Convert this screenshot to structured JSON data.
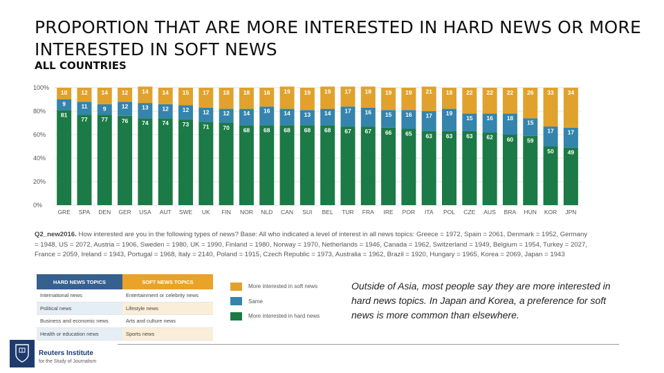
{
  "title": "PROPORTION THAT ARE MORE INTERESTED IN HARD NEWS OR MORE INTERESTED IN SOFT NEWS",
  "subtitle": "ALL COUNTRIES",
  "footnote": {
    "label": "Q2_new2016.",
    "text": " How interested are you in the following types of news? Base: All who indicated a level of interest in all news topics: Greece = 1972, Spain = 2061, Denmark = 1952, Germany = 1948, US = 2072, Austria = 1906, Sweden = 1980, UK = 1990, Finland = 1980, Norway = 1970, Netherlands = 1946, Canada = 1962, Switzerland = 1949, Belgium = 1954, Turkey = 2027, France = 2059, Ireland = 1943, Portugal = 1968, Italy = 2140, Poland = 1915, Czech Republic = 1973, Australia = 1962, Brazil = 1920, Hungary = 1965, Korea = 2069, Japan = 1943"
  },
  "chart_data": {
    "type": "bar",
    "stacked": true,
    "categories": [
      "GRE",
      "SPA",
      "DEN",
      "GER",
      "USA",
      "AUT",
      "SWE",
      "UK",
      "FIN",
      "NOR",
      "NLD",
      "CAN",
      "SUI",
      "BEL",
      "TUR",
      "FRA",
      "IRE",
      "POR",
      "ITA",
      "POL",
      "CZE",
      "AUS",
      "BRA",
      "HUN",
      "KOR",
      "JPN"
    ],
    "series": [
      {
        "name": "More interested in hard news",
        "color": "#1b7a45",
        "values": [
          81,
          77,
          77,
          76,
          74,
          74,
          73,
          71,
          70,
          68,
          68,
          68,
          68,
          68,
          67,
          67,
          66,
          65,
          63,
          63,
          63,
          62,
          60,
          59,
          50,
          49
        ]
      },
      {
        "name": "Same",
        "color": "#3484ad",
        "values": [
          9,
          11,
          9,
          12,
          13,
          12,
          12,
          12,
          12,
          14,
          16,
          14,
          13,
          14,
          17,
          16,
          15,
          16,
          17,
          19,
          15,
          16,
          18,
          15,
          17,
          17
        ]
      },
      {
        "name": "More interested in soft news",
        "color": "#e0a22d",
        "values": [
          10,
          12,
          14,
          12,
          14,
          14,
          15,
          17,
          18,
          18,
          16,
          19,
          19,
          19,
          17,
          18,
          19,
          19,
          21,
          18,
          22,
          22,
          22,
          26,
          33,
          34
        ]
      }
    ],
    "yticks": [
      "100%",
      "80%",
      "60%",
      "40%",
      "20%",
      "0%"
    ],
    "ylim": [
      0,
      100
    ],
    "grid": true
  },
  "topics": {
    "headers": [
      "HARD NEWS TOPICS",
      "SOFT NEWS TOPICS"
    ],
    "rows": [
      [
        "International news",
        "Entertainment or celebrity news"
      ],
      [
        "Political news",
        "Lifestyle news"
      ],
      [
        "Business and economic news",
        "Arts and culture news"
      ],
      [
        "Health or education news",
        "Sports news"
      ]
    ]
  },
  "legend": [
    {
      "label": "More interested in soft news",
      "color": "#e0a22d"
    },
    {
      "label": "Same",
      "color": "#3484ad"
    },
    {
      "label": "More interested in hard news",
      "color": "#1b7a45"
    }
  ],
  "caption": "Outside of Asia, most people say they are more interested in hard news topics. In Japan and Korea, a preference for soft news is more common than elsewhere.",
  "org": {
    "name": "Reuters Institute",
    "sub": "for the Study of Journalism",
    "logo_icon": "oxford-crest-icon"
  }
}
